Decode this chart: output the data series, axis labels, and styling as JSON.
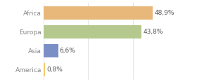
{
  "categories": [
    "America",
    "Asia",
    "Europa",
    "Africa"
  ],
  "values": [
    0.8,
    6.6,
    43.8,
    48.9
  ],
  "labels": [
    "0,8%",
    "6,6%",
    "43,8%",
    "48,9%"
  ],
  "bar_colors": [
    "#f5c96a",
    "#7b8fc7",
    "#b5c98e",
    "#e8b87a"
  ],
  "background_color": "#ffffff",
  "xlim": [
    0,
    58
  ],
  "bar_height": 0.72,
  "label_fontsize": 6.5,
  "tick_fontsize": 6.5,
  "tick_color": "#888888",
  "grid_color": "#e0e0e0"
}
